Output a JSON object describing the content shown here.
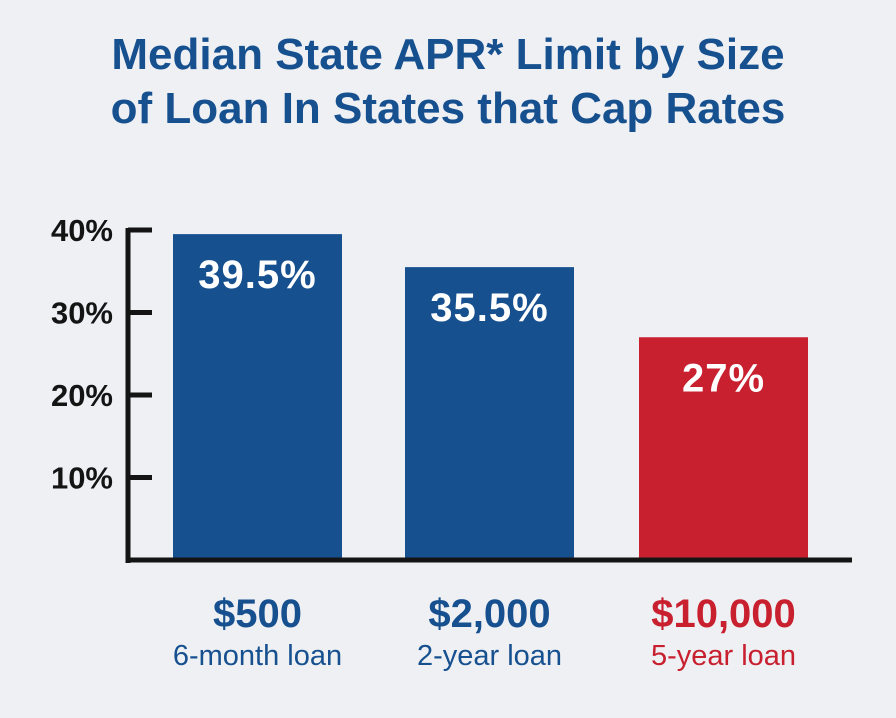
{
  "chart_data": {
    "type": "bar",
    "title": [
      "Median State APR* Limit by Size",
      "of Loan In States that Cap Rates"
    ],
    "xlabel": "",
    "ylabel": "",
    "ylim": [
      0,
      40
    ],
    "y_ticks": [
      {
        "value": 10,
        "label": "10%"
      },
      {
        "value": 20,
        "label": "20%"
      },
      {
        "value": 30,
        "label": "30%"
      },
      {
        "value": 40,
        "label": "40%"
      }
    ],
    "categories": [
      {
        "label": "$500",
        "sublabel": "6-month loan"
      },
      {
        "label": "$2,000",
        "sublabel": "2-year loan"
      },
      {
        "label": "$10,000",
        "sublabel": "5-year loan"
      }
    ],
    "values": [
      39.5,
      35.5,
      27
    ],
    "data_labels": [
      "39.5%",
      "35.5%",
      "27%"
    ],
    "colors": [
      "#17508f",
      "#17508f",
      "#c8202f"
    ],
    "axis_color": "#141414",
    "grid": false,
    "legend": "none"
  }
}
